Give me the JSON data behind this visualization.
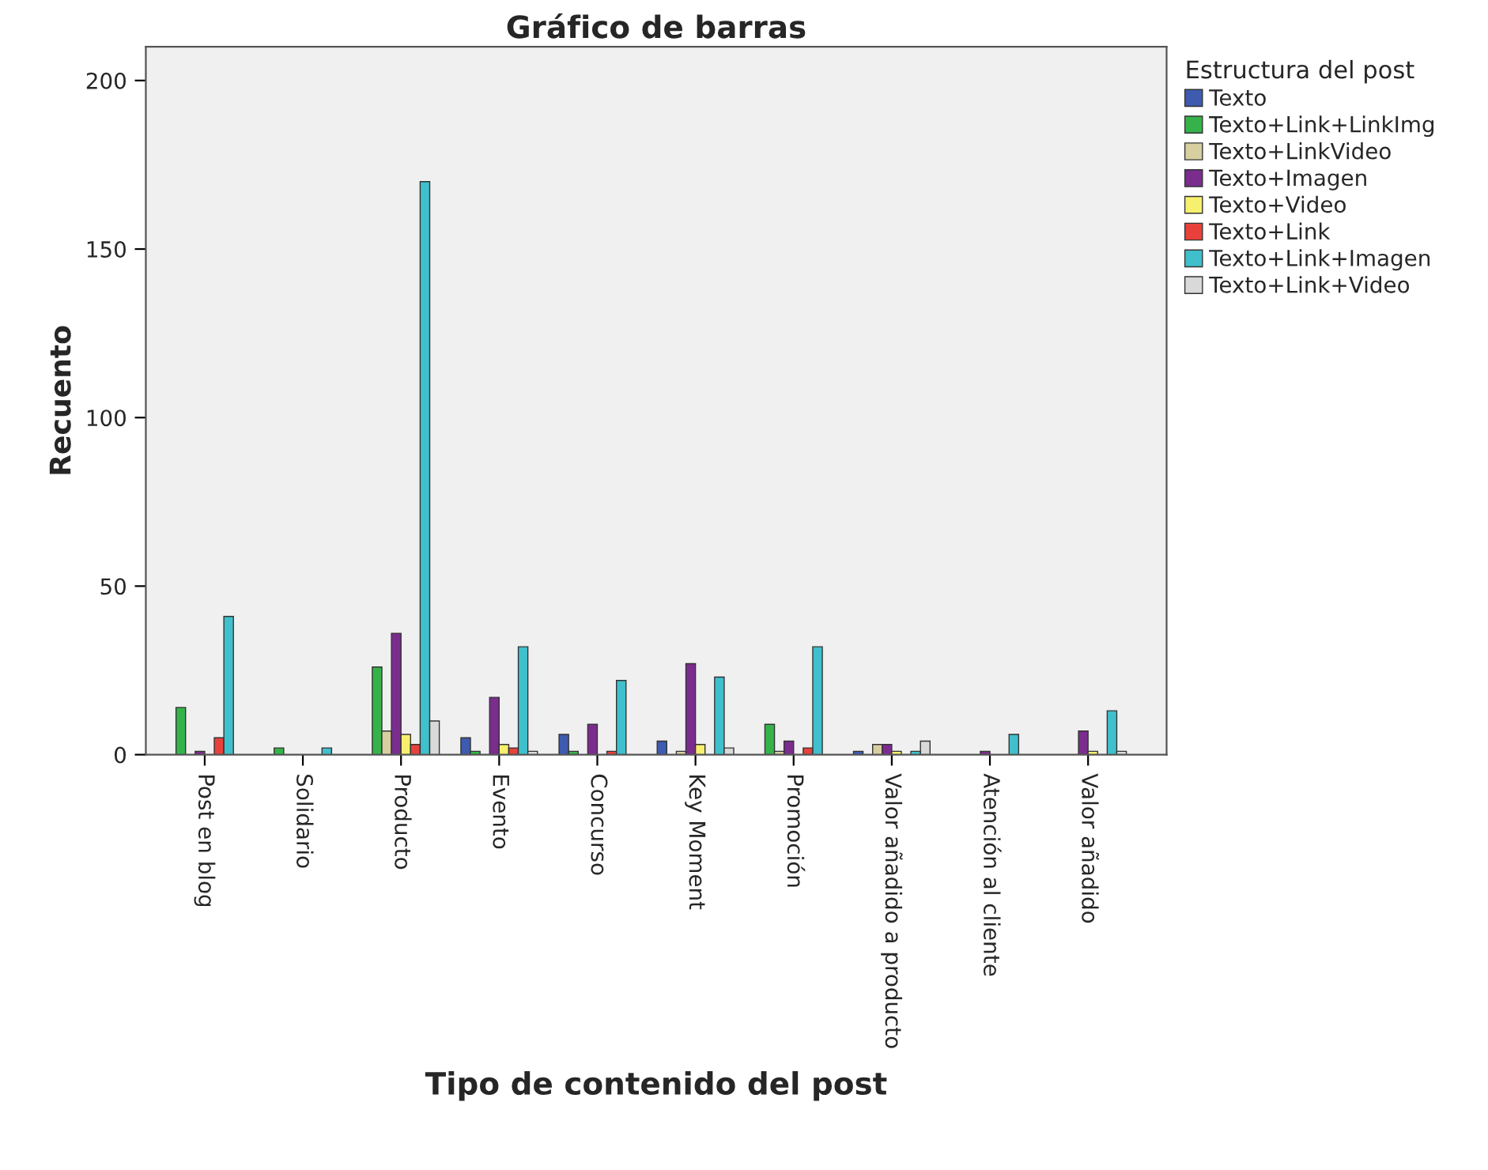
{
  "chart_data": {
    "type": "bar",
    "title": "Gráfico de barras",
    "xlabel": "Tipo de contenido del post",
    "ylabel": "Recuento",
    "legend_title": "Estructura del post",
    "categories": [
      "Post en blog",
      "Solidario",
      "Producto",
      "Evento",
      "Concurso",
      "Key Moment",
      "Promoción",
      "Valor añadido a producto",
      "Atención al cliente",
      "Valor añadido"
    ],
    "series": [
      {
        "name": "Texto",
        "color": "#3e5bb0",
        "values": [
          null,
          null,
          null,
          5,
          6,
          4,
          null,
          1,
          null,
          null
        ]
      },
      {
        "name": "Texto+Link+LinkImg",
        "color": "#35b34a",
        "values": [
          14,
          2,
          26,
          1,
          1,
          null,
          9,
          null,
          null,
          null
        ]
      },
      {
        "name": "Texto+LinkVideo",
        "color": "#d8cfa0",
        "values": [
          null,
          null,
          7,
          null,
          null,
          1,
          1,
          3,
          null,
          null
        ]
      },
      {
        "name": "Texto+Imagen",
        "color": "#7b2d8e",
        "values": [
          1,
          null,
          36,
          17,
          9,
          27,
          4,
          3,
          1,
          7
        ]
      },
      {
        "name": "Texto+Video",
        "color": "#f7f06e",
        "values": [
          null,
          null,
          6,
          3,
          null,
          3,
          null,
          1,
          null,
          1
        ]
      },
      {
        "name": "Texto+Link",
        "color": "#e8413c",
        "values": [
          5,
          null,
          3,
          2,
          1,
          null,
          2,
          null,
          null,
          null
        ]
      },
      {
        "name": "Texto+Link+Imagen",
        "color": "#40c0cc",
        "values": [
          41,
          2,
          170,
          32,
          22,
          23,
          32,
          1,
          6,
          13
        ]
      },
      {
        "name": "Texto+Link+Video",
        "color": "#d9d9d9",
        "values": [
          null,
          null,
          10,
          1,
          null,
          2,
          null,
          4,
          null,
          1
        ]
      }
    ],
    "ylim": [
      0,
      210
    ],
    "yticks": [
      0,
      50,
      100,
      150,
      200
    ],
    "grid": false,
    "legend": "top right"
  }
}
